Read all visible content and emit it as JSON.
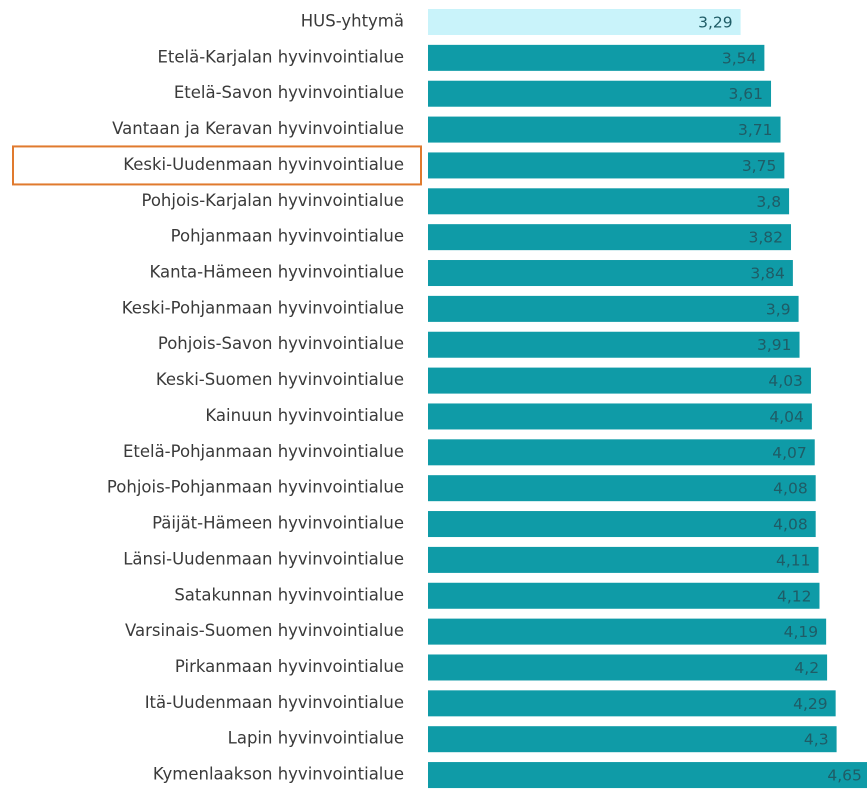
{
  "chart_data": {
    "type": "bar",
    "orientation": "horizontal",
    "categories": [
      "HUS-yhtymä",
      "Etelä-Karjalan hyvinvointialue",
      "Etelä-Savon hyvinvointialue",
      "Vantaan ja Keravan hyvinvointialue",
      "Keski-Uudenmaan hyvinvointialue",
      "Pohjois-Karjalan hyvinvointialue",
      "Pohjanmaan hyvinvointialue",
      "Kanta-Hämeen hyvinvointialue",
      "Keski-Pohjanmaan hyvinvointialue",
      "Pohjois-Savon hyvinvointialue",
      "Keski-Suomen hyvinvointialue",
      "Kainuun hyvinvointialue",
      "Etelä-Pohjanmaan hyvinvointialue",
      "Pohjois-Pohjanmaan hyvinvointialue",
      "Päijät-Hämeen hyvinvointialue",
      "Länsi-Uudenmaan hyvinvointialue",
      "Satakunnan hyvinvointialue",
      "Varsinais-Suomen hyvinvointialue",
      "Pirkanmaan hyvinvointialue",
      "Itä-Uudenmaan hyvinvointialue",
      "Lapin hyvinvointialue",
      "Kymenlaakson hyvinvointialue"
    ],
    "values": [
      3.29,
      3.54,
      3.61,
      3.71,
      3.75,
      3.8,
      3.82,
      3.84,
      3.9,
      3.91,
      4.03,
      4.04,
      4.07,
      4.08,
      4.08,
      4.11,
      4.12,
      4.19,
      4.2,
      4.29,
      4.3,
      4.65
    ],
    "value_labels": [
      "3,29",
      "3,54",
      "3,61",
      "3,71",
      "3,75",
      "3,8",
      "3,82",
      "3,84",
      "3,9",
      "3,91",
      "4,03",
      "4,04",
      "4,07",
      "4,08",
      "4,08",
      "4,11",
      "4,12",
      "4,19",
      "4,2",
      "4,29",
      "4,3",
      "4,65"
    ],
    "colors": [
      "#c9f3fa",
      "#0f9ba7",
      "#0f9ba7",
      "#0f9ba7",
      "#0f9ba7",
      "#0f9ba7",
      "#0f9ba7",
      "#0f9ba7",
      "#0f9ba7",
      "#0f9ba7",
      "#0f9ba7",
      "#0f9ba7",
      "#0f9ba7",
      "#0f9ba7",
      "#0f9ba7",
      "#0f9ba7",
      "#0f9ba7",
      "#0f9ba7",
      "#0f9ba7",
      "#0f9ba7",
      "#0f9ba7",
      "#0f9ba7"
    ],
    "xlim": [
      0,
      4.62
    ],
    "highlight_index": 4,
    "highlight_color": "#e07a2e"
  }
}
